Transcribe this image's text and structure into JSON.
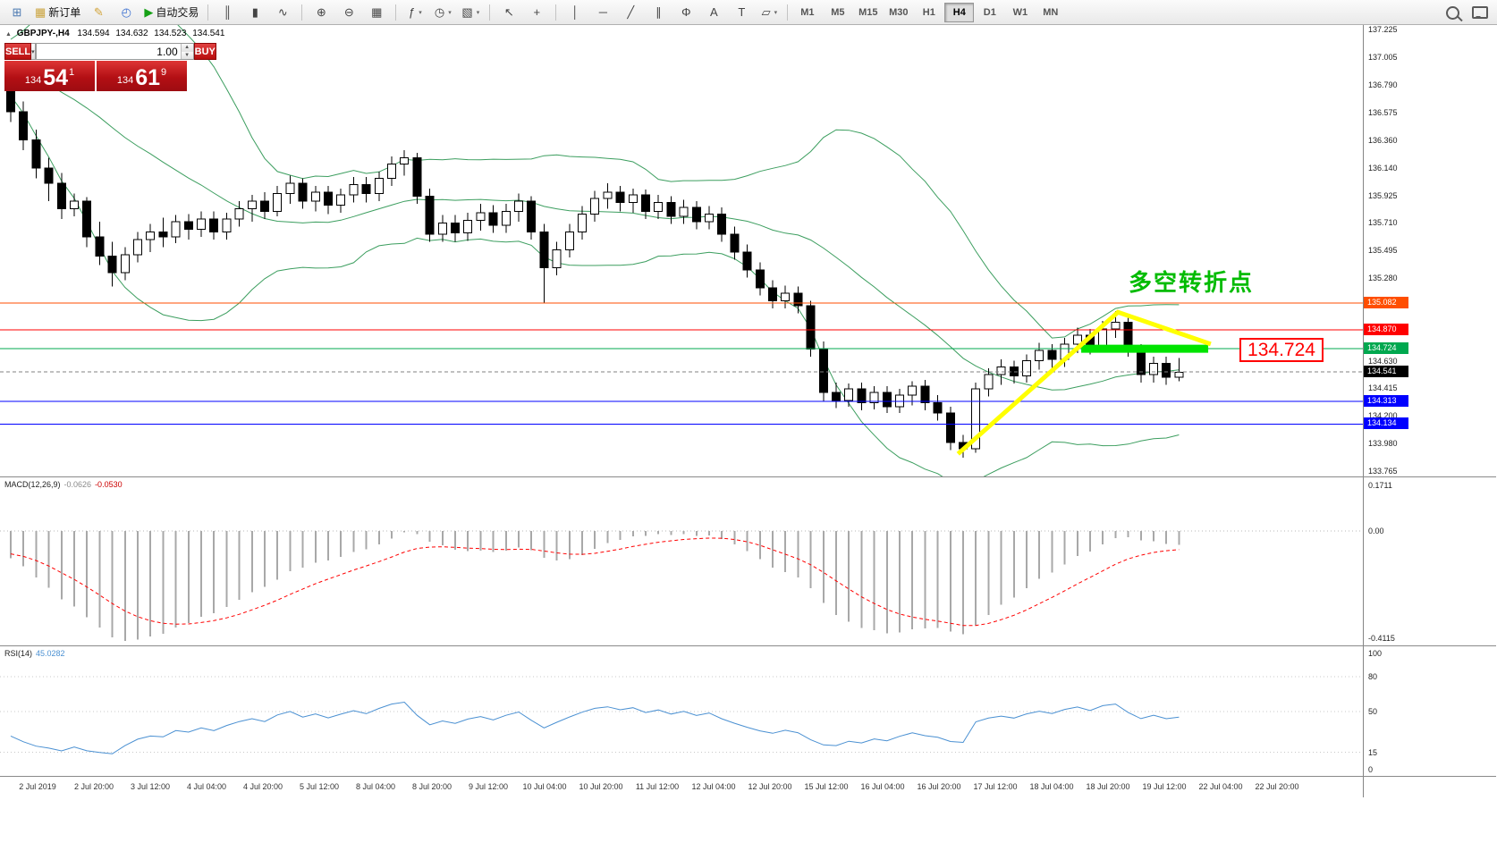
{
  "toolbar": {
    "groups": [
      {
        "items": [
          {
            "name": "new-chart-button",
            "glyph": "⊞",
            "color": "#4a78b0"
          },
          {
            "name": "new-order-button",
            "glyph": "▦",
            "color": "#caa23a",
            "label": "新订单"
          },
          {
            "name": "metaeditor-button",
            "glyph": "✎",
            "color": "#d2a43c"
          },
          {
            "name": "terminal-button",
            "glyph": "◴",
            "color": "#3a6fd0"
          },
          {
            "name": "autotrading-button",
            "glyph": "▶",
            "color": "#15a015",
            "label": "自动交易"
          }
        ]
      },
      {
        "items": [
          {
            "name": "chart-bars-button",
            "glyph": "║"
          },
          {
            "name": "chart-candles-button",
            "glyph": "▮"
          },
          {
            "name": "chart-line-button",
            "glyph": "∿"
          }
        ]
      },
      {
        "items": [
          {
            "name": "zoom-in-button",
            "glyph": "⊕"
          },
          {
            "name": "zoom-out-button",
            "glyph": "⊖"
          },
          {
            "name": "tile-windows-button",
            "glyph": "▦"
          }
        ]
      },
      {
        "items": [
          {
            "name": "indicators-button",
            "glyph": "ƒ",
            "dropdown": true
          },
          {
            "name": "periods-button",
            "glyph": "◷",
            "dropdown": true
          },
          {
            "name": "templates-button",
            "glyph": "▧",
            "dropdown": true
          }
        ]
      },
      {
        "items": [
          {
            "name": "cursor-button",
            "glyph": "↖"
          },
          {
            "name": "crosshair-button",
            "glyph": "+"
          }
        ]
      },
      {
        "items": [
          {
            "name": "vertical-line-button",
            "glyph": "│"
          },
          {
            "name": "horizontal-line-button",
            "glyph": "─"
          },
          {
            "name": "trendline-button",
            "glyph": "╱"
          },
          {
            "name": "channel-button",
            "glyph": "∥"
          },
          {
            "name": "fibonacci-button",
            "glyph": "Φ"
          },
          {
            "name": "text-button",
            "glyph": "A"
          },
          {
            "name": "label-button",
            "glyph": "T"
          },
          {
            "name": "shapes-button",
            "glyph": "▱",
            "dropdown": true
          }
        ]
      }
    ],
    "timeframes": [
      "M1",
      "M5",
      "M15",
      "M30",
      "H1",
      "H4",
      "D1",
      "W1",
      "MN"
    ],
    "active_timeframe": "H4"
  },
  "quote_header": {
    "collapse_glyph": "▲",
    "symbol": "GBPJPY-,H4",
    "open": "134.594",
    "high": "134.632",
    "low": "134.523",
    "close": "134.541"
  },
  "trade_panel": {
    "sell_label": "SELL",
    "buy_label": "BUY",
    "volume": "1.00",
    "bid": {
      "figure": "134",
      "pips": "54",
      "point": "1"
    },
    "ask": {
      "figure": "134",
      "pips": "61",
      "point": "9"
    }
  },
  "chart_data": {
    "type": "candlestick",
    "title": "GBPJPY-,H4",
    "symbol": "GBPJPY-",
    "timeframe": "H4",
    "price_axis": {
      "max": 137.225,
      "min": 133.765,
      "ticks": [
        "137.225",
        "137.005",
        "136.790",
        "136.575",
        "136.360",
        "136.140",
        "135.925",
        "135.710",
        "135.495",
        "135.280",
        "134.630",
        "134.415",
        "134.200",
        "133.980",
        "133.765"
      ]
    },
    "pre_closes": [
      137.3,
      137.22,
      137.15,
      137.1,
      137.18,
      137.25,
      137.12,
      137.05,
      136.98,
      137.06,
      137.12,
      137.02,
      136.94,
      136.88,
      136.95,
      137.02,
      136.92,
      136.85,
      136.9,
      136.97,
      136.9,
      136.84,
      136.9,
      136.95,
      136.88,
      136.82
    ],
    "candles": [
      [
        136.8,
        136.88,
        136.5,
        136.58
      ],
      [
        136.58,
        136.66,
        136.28,
        136.36
      ],
      [
        136.36,
        136.44,
        136.06,
        136.14
      ],
      [
        136.14,
        136.22,
        135.88,
        136.02
      ],
      [
        136.02,
        136.1,
        135.74,
        135.82
      ],
      [
        135.82,
        135.94,
        135.76,
        135.88
      ],
      [
        135.88,
        135.91,
        135.52,
        135.6
      ],
      [
        135.6,
        135.72,
        135.38,
        135.45
      ],
      [
        135.45,
        135.56,
        135.21,
        135.32
      ],
      [
        135.32,
        135.52,
        135.26,
        135.46
      ],
      [
        135.46,
        135.64,
        135.4,
        135.58
      ],
      [
        135.58,
        135.7,
        135.48,
        135.64
      ],
      [
        135.64,
        135.75,
        135.52,
        135.6
      ],
      [
        135.6,
        135.77,
        135.55,
        135.72
      ],
      [
        135.72,
        135.78,
        135.58,
        135.66
      ],
      [
        135.66,
        135.8,
        135.6,
        135.74
      ],
      [
        135.74,
        135.8,
        135.58,
        135.64
      ],
      [
        135.64,
        135.79,
        135.58,
        135.74
      ],
      [
        135.74,
        135.88,
        135.68,
        135.82
      ],
      [
        135.82,
        135.93,
        135.72,
        135.88
      ],
      [
        135.88,
        135.95,
        135.74,
        135.8
      ],
      [
        135.8,
        136.0,
        135.76,
        135.94
      ],
      [
        135.94,
        136.08,
        135.86,
        136.02
      ],
      [
        136.02,
        136.06,
        135.82,
        135.88
      ],
      [
        135.88,
        136.0,
        135.8,
        135.95
      ],
      [
        135.95,
        136.0,
        135.78,
        135.85
      ],
      [
        135.85,
        135.98,
        135.79,
        135.93
      ],
      [
        135.93,
        136.07,
        135.87,
        136.01
      ],
      [
        136.01,
        136.07,
        135.87,
        135.94
      ],
      [
        135.94,
        136.11,
        135.88,
        136.06
      ],
      [
        136.06,
        136.23,
        136.0,
        136.17
      ],
      [
        136.17,
        136.28,
        136.08,
        136.22
      ],
      [
        136.22,
        136.26,
        135.86,
        135.92
      ],
      [
        135.92,
        135.98,
        135.56,
        135.62
      ],
      [
        135.62,
        135.77,
        135.56,
        135.71
      ],
      [
        135.71,
        135.77,
        135.56,
        135.63
      ],
      [
        135.63,
        135.79,
        135.57,
        135.73
      ],
      [
        135.73,
        135.86,
        135.65,
        135.79
      ],
      [
        135.79,
        135.85,
        135.63,
        135.69
      ],
      [
        135.69,
        135.86,
        135.63,
        135.8
      ],
      [
        135.8,
        135.94,
        135.72,
        135.88
      ],
      [
        135.88,
        135.92,
        135.58,
        135.64
      ],
      [
        135.64,
        135.7,
        135.08,
        135.36
      ],
      [
        135.36,
        135.56,
        135.3,
        135.5
      ],
      [
        135.5,
        135.7,
        135.44,
        135.64
      ],
      [
        135.64,
        135.84,
        135.58,
        135.78
      ],
      [
        135.78,
        135.96,
        135.72,
        135.9
      ],
      [
        135.9,
        136.02,
        135.82,
        135.95
      ],
      [
        135.95,
        136.0,
        135.8,
        135.87
      ],
      [
        135.87,
        135.98,
        135.79,
        135.93
      ],
      [
        135.93,
        135.97,
        135.74,
        135.8
      ],
      [
        135.8,
        135.93,
        135.74,
        135.87
      ],
      [
        135.87,
        135.92,
        135.7,
        135.76
      ],
      [
        135.76,
        135.89,
        135.7,
        135.83
      ],
      [
        135.83,
        135.88,
        135.66,
        135.72
      ],
      [
        135.72,
        135.84,
        135.66,
        135.78
      ],
      [
        135.78,
        135.83,
        135.56,
        135.62
      ],
      [
        135.62,
        135.68,
        135.42,
        135.48
      ],
      [
        135.48,
        135.54,
        135.28,
        135.34
      ],
      [
        135.34,
        135.4,
        135.14,
        135.2
      ],
      [
        135.2,
        135.26,
        135.04,
        135.1
      ],
      [
        135.1,
        135.22,
        135.04,
        135.16
      ],
      [
        135.16,
        135.21,
        135.0,
        135.06
      ],
      [
        135.06,
        135.1,
        134.66,
        134.72
      ],
      [
        134.72,
        134.78,
        134.31,
        134.38
      ],
      [
        134.38,
        134.46,
        134.26,
        134.32
      ],
      [
        134.32,
        134.45,
        134.27,
        134.41
      ],
      [
        134.41,
        134.46,
        134.24,
        134.3
      ],
      [
        134.3,
        134.43,
        134.25,
        134.38
      ],
      [
        134.38,
        134.43,
        134.22,
        134.27
      ],
      [
        134.27,
        134.41,
        134.22,
        134.36
      ],
      [
        134.36,
        134.47,
        134.28,
        134.43
      ],
      [
        134.43,
        134.48,
        134.24,
        134.3
      ],
      [
        134.3,
        134.36,
        134.16,
        134.22
      ],
      [
        134.22,
        134.27,
        133.93,
        133.99
      ],
      [
        133.99,
        134.05,
        133.87,
        133.94
      ],
      [
        133.94,
        134.46,
        133.91,
        134.41
      ],
      [
        134.41,
        134.57,
        134.35,
        134.52
      ],
      [
        134.52,
        134.64,
        134.44,
        134.58
      ],
      [
        134.58,
        134.63,
        134.45,
        134.51
      ],
      [
        134.51,
        134.68,
        134.46,
        134.63
      ],
      [
        134.63,
        134.77,
        134.56,
        134.71
      ],
      [
        134.71,
        134.76,
        134.57,
        134.64
      ],
      [
        134.64,
        134.81,
        134.58,
        134.76
      ],
      [
        134.76,
        134.89,
        134.69,
        134.83
      ],
      [
        134.83,
        134.88,
        134.68,
        134.74
      ],
      [
        134.74,
        134.94,
        134.7,
        134.88
      ],
      [
        134.88,
        135.02,
        134.81,
        134.93
      ],
      [
        134.93,
        134.97,
        134.66,
        134.71
      ],
      [
        134.71,
        134.76,
        134.46,
        134.52
      ],
      [
        134.52,
        134.66,
        134.46,
        134.61
      ],
      [
        134.61,
        134.66,
        134.44,
        134.5
      ],
      [
        134.5,
        134.65,
        134.47,
        134.54
      ]
    ],
    "indicators": {
      "bollinger": {
        "period": 20,
        "deviation": 2,
        "color": "#3c9e5f"
      },
      "macd": {
        "label": "MACD(12,26,9)",
        "value_main": "-0.0626",
        "value_signal": "-0.0530",
        "scale": [
          "0.1711",
          "0.00",
          "-0.4115"
        ],
        "histogram_color": "#a8a8a8",
        "signal_color": "#ff0000"
      },
      "rsi": {
        "label": "RSI(14)",
        "value": "45.0282",
        "scale": [
          "100",
          "80",
          "50",
          "15",
          "0"
        ],
        "levels": [
          80,
          50,
          15
        ],
        "color": "#4a90d2"
      }
    },
    "hlines": [
      {
        "price": 135.082,
        "label": "135.082",
        "color": "#ff4e00"
      },
      {
        "price": 134.87,
        "label": "134.870",
        "color": "#ff0000"
      },
      {
        "price": 134.724,
        "label": "134.724",
        "color": "#00a84f"
      },
      {
        "price": 134.313,
        "label": "134.313",
        "color": "#0000ff"
      },
      {
        "price": 134.134,
        "label": "134.134",
        "color": "#0000ff"
      }
    ],
    "bid_line": {
      "price": 134.541,
      "label": "134.541",
      "line_color": "#808080",
      "label_bg": "#000000"
    },
    "time_axis": [
      "2 Jul 2019",
      "2 Jul 20:00",
      "3 Jul 12:00",
      "4 Jul 04:00",
      "4 Jul 20:00",
      "5 Jul 12:00",
      "8 Jul 04:00",
      "8 Jul 20:00",
      "9 Jul 12:00",
      "10 Jul 04:00",
      "10 Jul 20:00",
      "11 Jul 12:00",
      "12 Jul 04:00",
      "12 Jul 20:00",
      "15 Jul 12:00",
      "16 Jul 04:00",
      "16 Jul 20:00",
      "17 Jul 12:00",
      "18 Jul 04:00",
      "18 Jul 20:00",
      "19 Jul 12:00",
      "22 Jul 04:00",
      "22 Jul 20:00"
    ]
  },
  "annotations": {
    "turning_point_text": "多空转折点",
    "turning_point_color": "#00bb00",
    "price_label": "134.724",
    "price_label_color": "#ff0000",
    "trendline": {
      "color": "#ffff00",
      "width": 5,
      "points": [
        {
          "i": 74.6,
          "p": 133.9
        },
        {
          "i": 87.2,
          "p": 135.01
        },
        {
          "i": 94.5,
          "p": 134.76
        }
      ]
    },
    "level_highlight": {
      "color": "#00e400",
      "price": 134.724,
      "from_i": 84.3,
      "to_i": 94.3,
      "width": 9
    }
  }
}
